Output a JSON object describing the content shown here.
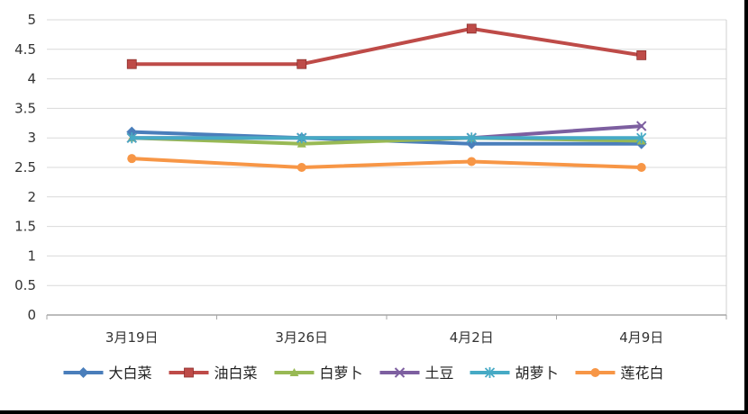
{
  "chart_data": {
    "type": "line",
    "title": "",
    "xlabel": "",
    "ylabel": "",
    "categories": [
      "3月19日",
      "3月26日",
      "4月2日",
      "4月9日"
    ],
    "ylim": [
      0,
      5
    ],
    "yticks": [
      "0",
      "0.5",
      "1",
      "1.5",
      "2",
      "2.5",
      "3",
      "3.5",
      "4",
      "4.5",
      "5"
    ],
    "grid": true,
    "legend_position": "bottom",
    "series": [
      {
        "name": "大白菜",
        "values": [
          3.1,
          3.0,
          2.9,
          2.9
        ],
        "color": "#4a7ebb",
        "marker": "diamond"
      },
      {
        "name": "油白菜",
        "values": [
          4.25,
          4.25,
          4.85,
          4.4
        ],
        "color": "#be4b48",
        "marker": "square"
      },
      {
        "name": "白萝卜",
        "values": [
          3.0,
          2.9,
          3.0,
          2.95
        ],
        "color": "#98b954",
        "marker": "triangle"
      },
      {
        "name": "土豆",
        "values": [
          3.0,
          3.0,
          3.0,
          3.2
        ],
        "color": "#7d5fa0",
        "marker": "x"
      },
      {
        "name": "胡萝卜",
        "values": [
          3.0,
          3.0,
          3.0,
          3.0
        ],
        "color": "#46aac5",
        "marker": "star"
      },
      {
        "name": "莲花白",
        "values": [
          2.65,
          2.5,
          2.6,
          2.5
        ],
        "color": "#f79646",
        "marker": "circle"
      }
    ]
  }
}
